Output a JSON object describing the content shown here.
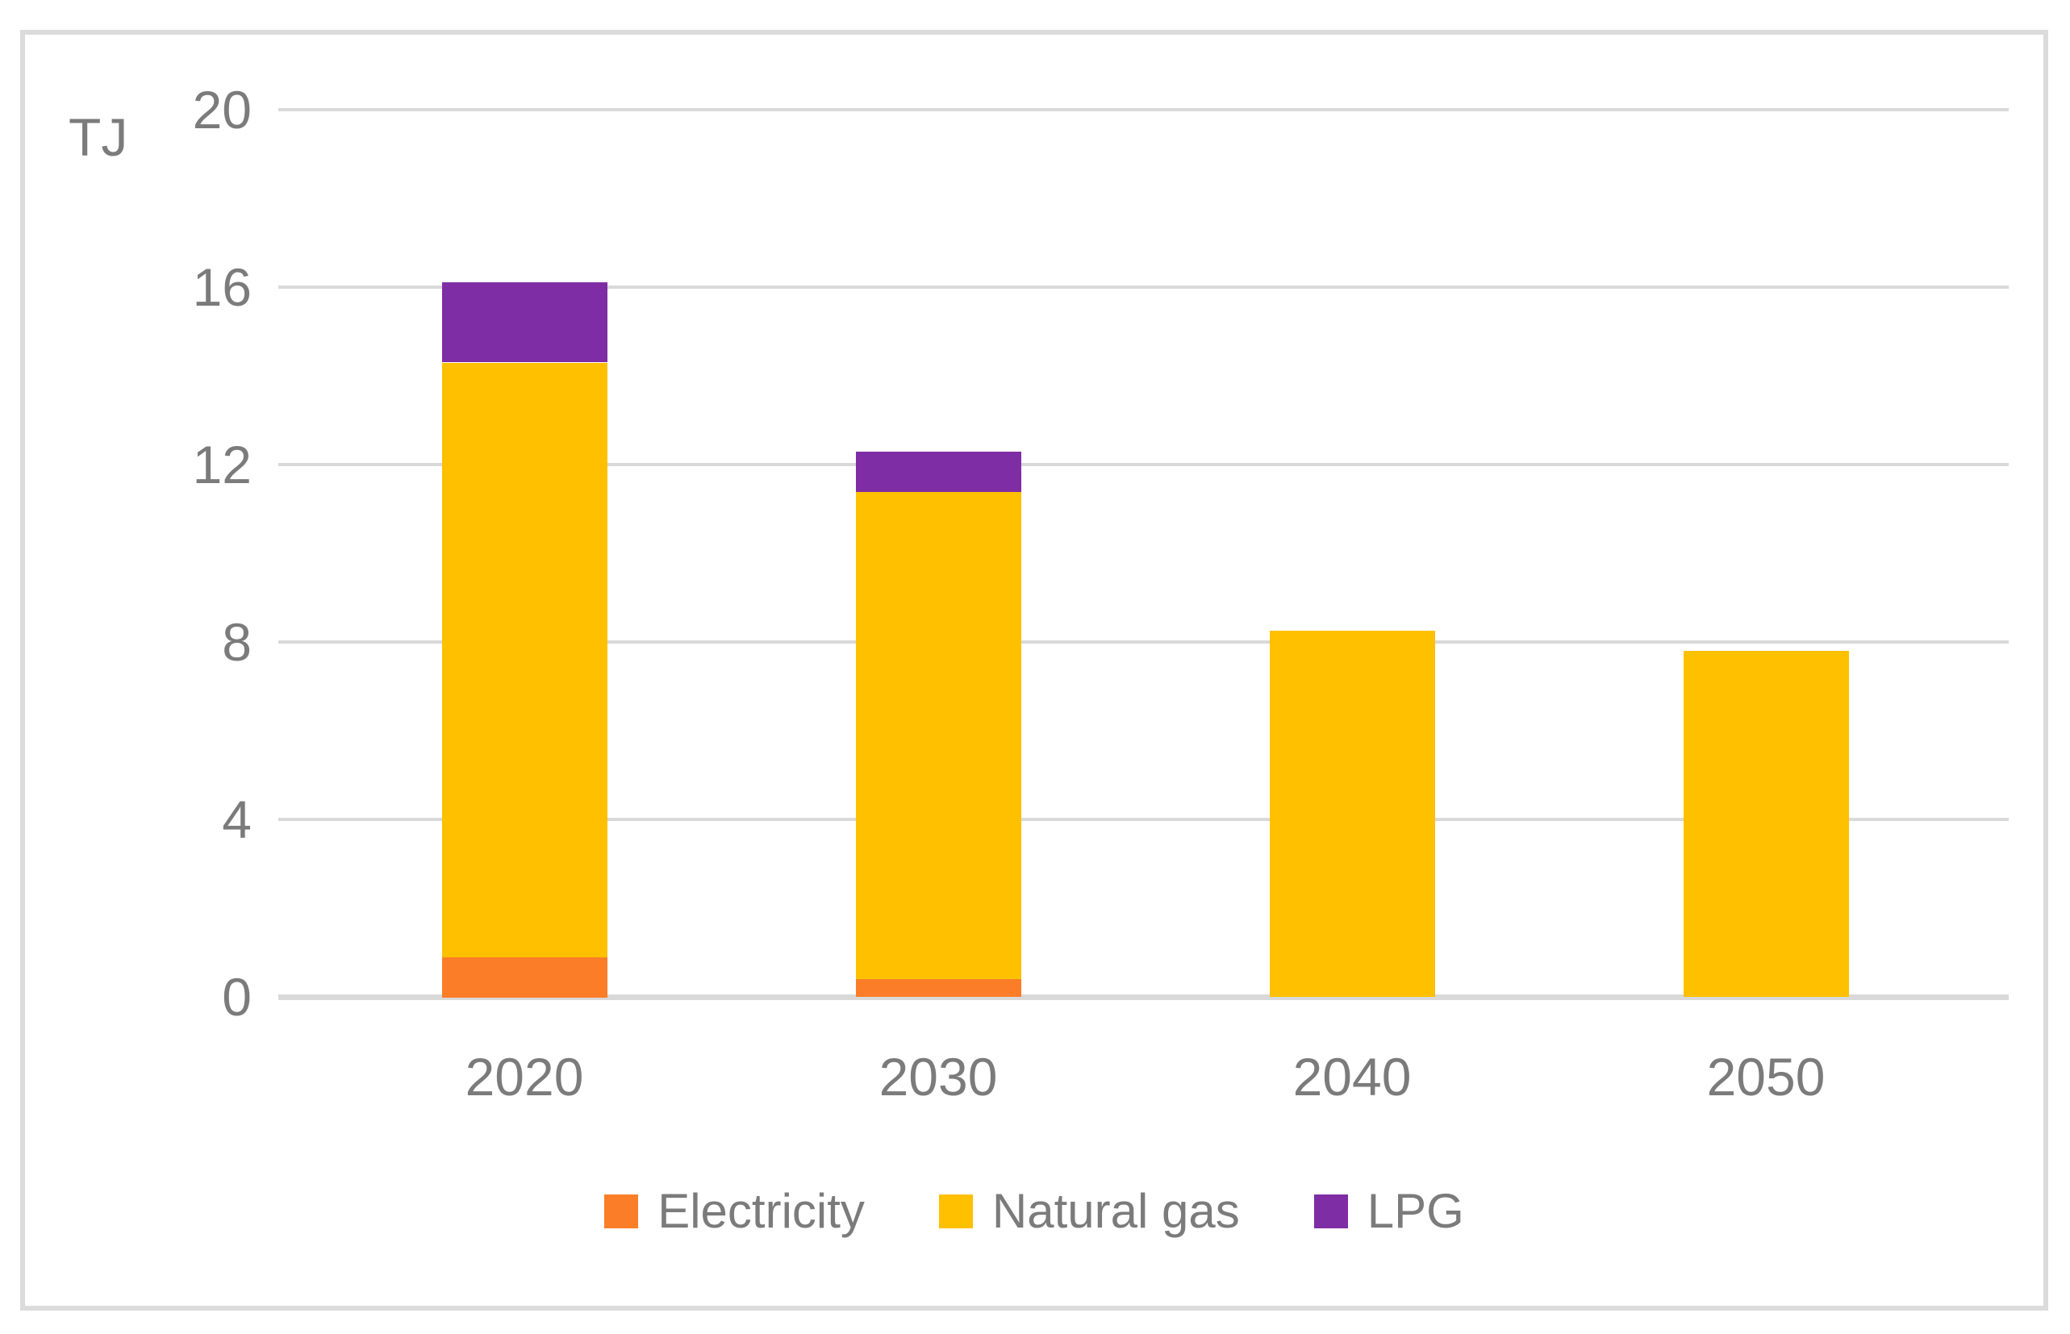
{
  "chart_data": {
    "type": "bar",
    "stacked": true,
    "title": "",
    "ylabel": "TJ",
    "xlabel": "",
    "categories": [
      "2020",
      "2030",
      "2040",
      "2050"
    ],
    "series": [
      {
        "name": "Electricity",
        "color": "#FB7D28",
        "values": [
          0.9,
          0.4,
          0,
          0
        ]
      },
      {
        "name": "Natural gas",
        "color": "#FFC000",
        "values": [
          13.4,
          11.0,
          8.25,
          7.8
        ]
      },
      {
        "name": "LPG",
        "color": "#7F2DA4",
        "values": [
          1.8,
          0.9,
          0,
          0
        ]
      }
    ],
    "ylim": [
      0,
      20
    ],
    "yticks": [
      0,
      4,
      8,
      12,
      16,
      20
    ],
    "ytick_labels": [
      "0",
      "4",
      "8",
      "12",
      "16",
      "20"
    ],
    "grid": true,
    "gridline_color": "#D9D9D9",
    "axis_line_color": "#D9D9D9",
    "frame_color": "#DBDBDB",
    "text_color": "#7B7B7B",
    "legend_position": "bottom",
    "legend": [
      "Electricity",
      "Natural gas",
      "LPG"
    ]
  }
}
